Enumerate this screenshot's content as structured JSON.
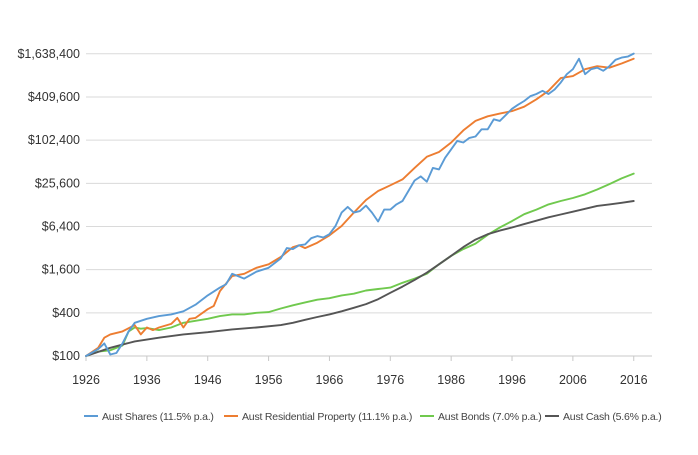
{
  "chart_data": {
    "type": "line",
    "title": "",
    "xlabel": "",
    "ylabel": "",
    "y_scale": "log",
    "xlim": [
      1926,
      2019
    ],
    "ylim": [
      100,
      3300000
    ],
    "grid": "horizontal",
    "legend_position": "bottom",
    "y_ticks": [
      100,
      400,
      1600,
      6400,
      25600,
      102400,
      409600,
      1638400
    ],
    "y_tick_labels": [
      "$100",
      "$400",
      "$1,600",
      "$6,400",
      "$25,600",
      "$102,400",
      "$409,600",
      "$1,638,400"
    ],
    "x_ticks": [
      1926,
      1936,
      1946,
      1956,
      1966,
      1976,
      1986,
      1996,
      2006,
      2016
    ],
    "x_tick_labels": [
      "1926",
      "1936",
      "1946",
      "1956",
      "1966",
      "1976",
      "1986",
      "1996",
      "2006",
      "2016"
    ],
    "series": [
      {
        "name": "Aust Shares (11.5% p.a.)",
        "color": "#5b9bd5",
        "points": [
          [
            1926,
            100
          ],
          [
            1928,
            125
          ],
          [
            1929,
            150
          ],
          [
            1930,
            105
          ],
          [
            1931,
            110
          ],
          [
            1932,
            150
          ],
          [
            1933,
            220
          ],
          [
            1934,
            290
          ],
          [
            1936,
            330
          ],
          [
            1938,
            360
          ],
          [
            1940,
            380
          ],
          [
            1942,
            420
          ],
          [
            1944,
            520
          ],
          [
            1946,
            700
          ],
          [
            1948,
            900
          ],
          [
            1949,
            1000
          ],
          [
            1950,
            1400
          ],
          [
            1952,
            1200
          ],
          [
            1954,
            1500
          ],
          [
            1956,
            1700
          ],
          [
            1958,
            2300
          ],
          [
            1959,
            3200
          ],
          [
            1960,
            3100
          ],
          [
            1961,
            3500
          ],
          [
            1962,
            3600
          ],
          [
            1963,
            4400
          ],
          [
            1964,
            4700
          ],
          [
            1965,
            4500
          ],
          [
            1966,
            5000
          ],
          [
            1967,
            6500
          ],
          [
            1968,
            10000
          ],
          [
            1969,
            12000
          ],
          [
            1970,
            10000
          ],
          [
            1971,
            10500
          ],
          [
            1972,
            12500
          ],
          [
            1973,
            10000
          ],
          [
            1974,
            7500
          ],
          [
            1975,
            11000
          ],
          [
            1976,
            11000
          ],
          [
            1977,
            13000
          ],
          [
            1978,
            14500
          ],
          [
            1980,
            28000
          ],
          [
            1981,
            32000
          ],
          [
            1982,
            27000
          ],
          [
            1983,
            42000
          ],
          [
            1984,
            40000
          ],
          [
            1985,
            58000
          ],
          [
            1987,
            100000
          ],
          [
            1988,
            95000
          ],
          [
            1989,
            110000
          ],
          [
            1990,
            115000
          ],
          [
            1991,
            145000
          ],
          [
            1992,
            145000
          ],
          [
            1993,
            200000
          ],
          [
            1994,
            190000
          ],
          [
            1995,
            230000
          ],
          [
            1996,
            280000
          ],
          [
            1997,
            320000
          ],
          [
            1998,
            360000
          ],
          [
            1999,
            420000
          ],
          [
            2000,
            450000
          ],
          [
            2001,
            500000
          ],
          [
            2002,
            450000
          ],
          [
            2003,
            520000
          ],
          [
            2004,
            650000
          ],
          [
            2005,
            850000
          ],
          [
            2006,
            1000000
          ],
          [
            2007,
            1400000
          ],
          [
            2008,
            850000
          ],
          [
            2009,
            1000000
          ],
          [
            2010,
            1050000
          ],
          [
            2011,
            950000
          ],
          [
            2012,
            1100000
          ],
          [
            2013,
            1350000
          ],
          [
            2014,
            1450000
          ],
          [
            2015,
            1500000
          ],
          [
            2016,
            1650000
          ]
        ]
      },
      {
        "name": "Aust Residential Property (11.1% p.a.)",
        "color": "#ed7d31",
        "points": [
          [
            1926,
            100
          ],
          [
            1928,
            130
          ],
          [
            1929,
            180
          ],
          [
            1930,
            200
          ],
          [
            1932,
            220
          ],
          [
            1934,
            270
          ],
          [
            1935,
            200
          ],
          [
            1936,
            250
          ],
          [
            1937,
            230
          ],
          [
            1938,
            250
          ],
          [
            1940,
            280
          ],
          [
            1941,
            340
          ],
          [
            1942,
            250
          ],
          [
            1943,
            330
          ],
          [
            1944,
            340
          ],
          [
            1946,
            450
          ],
          [
            1947,
            500
          ],
          [
            1948,
            800
          ],
          [
            1950,
            1300
          ],
          [
            1952,
            1400
          ],
          [
            1954,
            1700
          ],
          [
            1956,
            1900
          ],
          [
            1958,
            2400
          ],
          [
            1960,
            3300
          ],
          [
            1961,
            3500
          ],
          [
            1962,
            3200
          ],
          [
            1964,
            3800
          ],
          [
            1966,
            4800
          ],
          [
            1968,
            6500
          ],
          [
            1970,
            10000
          ],
          [
            1972,
            15000
          ],
          [
            1974,
            20000
          ],
          [
            1976,
            24000
          ],
          [
            1978,
            29000
          ],
          [
            1980,
            42000
          ],
          [
            1982,
            60000
          ],
          [
            1984,
            70000
          ],
          [
            1986,
            95000
          ],
          [
            1988,
            140000
          ],
          [
            1990,
            190000
          ],
          [
            1992,
            220000
          ],
          [
            1994,
            240000
          ],
          [
            1996,
            260000
          ],
          [
            1998,
            300000
          ],
          [
            2000,
            380000
          ],
          [
            2002,
            500000
          ],
          [
            2004,
            750000
          ],
          [
            2006,
            800000
          ],
          [
            2008,
            1000000
          ],
          [
            2010,
            1100000
          ],
          [
            2012,
            1050000
          ],
          [
            2014,
            1200000
          ],
          [
            2016,
            1400000
          ]
        ]
      },
      {
        "name": "Aust Bonds (7.0% p.a.)",
        "color": "#70c94e",
        "points": [
          [
            1926,
            100
          ],
          [
            1928,
            115
          ],
          [
            1930,
            120
          ],
          [
            1932,
            140
          ],
          [
            1933,
            220
          ],
          [
            1934,
            250
          ],
          [
            1935,
            240
          ],
          [
            1936,
            245
          ],
          [
            1938,
            230
          ],
          [
            1940,
            250
          ],
          [
            1942,
            290
          ],
          [
            1944,
            310
          ],
          [
            1946,
            330
          ],
          [
            1948,
            360
          ],
          [
            1950,
            380
          ],
          [
            1952,
            380
          ],
          [
            1954,
            400
          ],
          [
            1956,
            410
          ],
          [
            1958,
            460
          ],
          [
            1960,
            510
          ],
          [
            1962,
            560
          ],
          [
            1964,
            610
          ],
          [
            1966,
            640
          ],
          [
            1968,
            700
          ],
          [
            1970,
            740
          ],
          [
            1972,
            820
          ],
          [
            1974,
            860
          ],
          [
            1976,
            900
          ],
          [
            1978,
            1050
          ],
          [
            1980,
            1200
          ],
          [
            1982,
            1400
          ],
          [
            1984,
            1900
          ],
          [
            1986,
            2500
          ],
          [
            1988,
            3100
          ],
          [
            1990,
            3700
          ],
          [
            1992,
            4900
          ],
          [
            1994,
            6200
          ],
          [
            1996,
            7600
          ],
          [
            1998,
            9500
          ],
          [
            2000,
            11000
          ],
          [
            2002,
            13000
          ],
          [
            2004,
            14500
          ],
          [
            2006,
            16000
          ],
          [
            2008,
            18000
          ],
          [
            2010,
            21000
          ],
          [
            2012,
            25000
          ],
          [
            2014,
            30000
          ],
          [
            2016,
            35000
          ]
        ]
      },
      {
        "name": "Aust Cash (5.6% p.a.)",
        "color": "#555555",
        "points": [
          [
            1926,
            100
          ],
          [
            1930,
            130
          ],
          [
            1934,
            160
          ],
          [
            1938,
            180
          ],
          [
            1942,
            200
          ],
          [
            1946,
            215
          ],
          [
            1950,
            235
          ],
          [
            1954,
            250
          ],
          [
            1958,
            270
          ],
          [
            1960,
            290
          ],
          [
            1962,
            320
          ],
          [
            1964,
            350
          ],
          [
            1966,
            380
          ],
          [
            1968,
            420
          ],
          [
            1970,
            470
          ],
          [
            1972,
            530
          ],
          [
            1974,
            620
          ],
          [
            1976,
            760
          ],
          [
            1978,
            930
          ],
          [
            1980,
            1150
          ],
          [
            1982,
            1450
          ],
          [
            1984,
            1900
          ],
          [
            1986,
            2500
          ],
          [
            1988,
            3300
          ],
          [
            1990,
            4200
          ],
          [
            1992,
            5000
          ],
          [
            1994,
            5600
          ],
          [
            1996,
            6200
          ],
          [
            1998,
            6900
          ],
          [
            2000,
            7700
          ],
          [
            2002,
            8600
          ],
          [
            2004,
            9400
          ],
          [
            2006,
            10300
          ],
          [
            2008,
            11300
          ],
          [
            2010,
            12400
          ],
          [
            2012,
            13000
          ],
          [
            2014,
            13700
          ],
          [
            2016,
            14500
          ]
        ]
      }
    ]
  }
}
